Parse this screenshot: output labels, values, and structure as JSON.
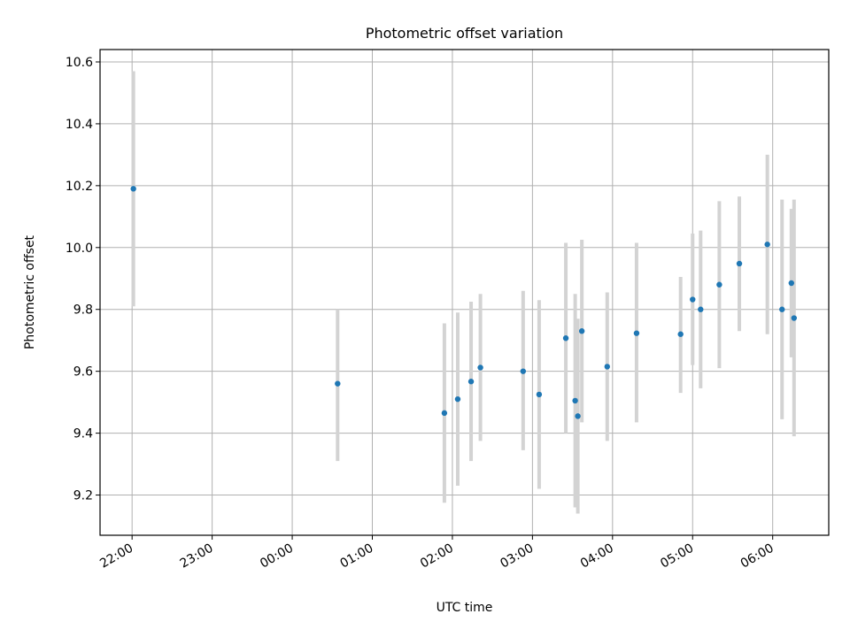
{
  "chart_data": {
    "type": "scatter",
    "title": "Photometric offset variation",
    "xlabel": "UTC time",
    "ylabel": "Photometric offset",
    "grid": true,
    "x_type": "time",
    "xlim": [
      "21:36",
      "06:42"
    ],
    "ylim": [
      9.07,
      10.64
    ],
    "x_ticks": [
      "22:00",
      "23:00",
      "00:00",
      "01:00",
      "02:00",
      "03:00",
      "04:00",
      "05:00",
      "06:00"
    ],
    "y_ticks": [
      "9.2",
      "9.4",
      "9.6",
      "9.8",
      "10.0",
      "10.2",
      "10.4",
      "10.6"
    ],
    "colors": {
      "points": "#1f77b4",
      "error_bars": "#d3d3d3"
    },
    "points": [
      {
        "x": "22:01",
        "y": 10.19,
        "yerr_low": 9.81,
        "yerr_high": 10.57
      },
      {
        "x": "00:34",
        "y": 9.56,
        "yerr_low": 9.31,
        "yerr_high": 9.8
      },
      {
        "x": "01:54",
        "y": 9.465,
        "yerr_low": 9.175,
        "yerr_high": 9.755
      },
      {
        "x": "02:04",
        "y": 9.51,
        "yerr_low": 9.23,
        "yerr_high": 9.79
      },
      {
        "x": "02:14",
        "y": 9.567,
        "yerr_low": 9.31,
        "yerr_high": 9.825
      },
      {
        "x": "02:21",
        "y": 9.612,
        "yerr_low": 9.375,
        "yerr_high": 9.85
      },
      {
        "x": "02:53",
        "y": 9.6,
        "yerr_low": 9.345,
        "yerr_high": 9.86
      },
      {
        "x": "03:05",
        "y": 9.525,
        "yerr_low": 9.22,
        "yerr_high": 9.83
      },
      {
        "x": "03:25",
        "y": 9.707,
        "yerr_low": 9.4,
        "yerr_high": 10.015
      },
      {
        "x": "03:32",
        "y": 9.505,
        "yerr_low": 9.16,
        "yerr_high": 9.85
      },
      {
        "x": "03:34",
        "y": 9.455,
        "yerr_low": 9.14,
        "yerr_high": 9.77
      },
      {
        "x": "03:37",
        "y": 9.73,
        "yerr_low": 9.435,
        "yerr_high": 10.025
      },
      {
        "x": "03:56",
        "y": 9.615,
        "yerr_low": 9.375,
        "yerr_high": 9.855
      },
      {
        "x": "04:18",
        "y": 9.723,
        "yerr_low": 9.435,
        "yerr_high": 10.015
      },
      {
        "x": "04:51",
        "y": 9.72,
        "yerr_low": 9.53,
        "yerr_high": 9.905
      },
      {
        "x": "05:00",
        "y": 9.832,
        "yerr_low": 9.62,
        "yerr_high": 10.045
      },
      {
        "x": "05:06",
        "y": 9.8,
        "yerr_low": 9.545,
        "yerr_high": 10.055
      },
      {
        "x": "05:20",
        "y": 9.88,
        "yerr_low": 9.61,
        "yerr_high": 10.15
      },
      {
        "x": "05:35",
        "y": 9.948,
        "yerr_low": 9.73,
        "yerr_high": 10.165
      },
      {
        "x": "05:56",
        "y": 10.01,
        "yerr_low": 9.72,
        "yerr_high": 10.3
      },
      {
        "x": "06:07",
        "y": 9.8,
        "yerr_low": 9.445,
        "yerr_high": 10.155
      },
      {
        "x": "06:14",
        "y": 9.885,
        "yerr_low": 9.645,
        "yerr_high": 10.125
      },
      {
        "x": "06:16",
        "y": 9.772,
        "yerr_low": 9.39,
        "yerr_high": 10.155
      }
    ]
  }
}
